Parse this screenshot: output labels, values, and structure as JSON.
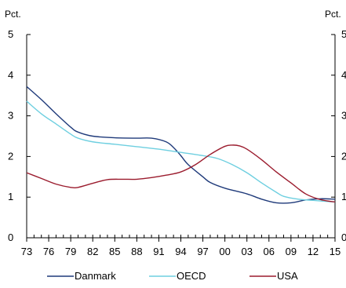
{
  "chart_data": {
    "type": "line",
    "title": "",
    "ylabel_left": "Pct.",
    "ylabel_right": "Pct.",
    "ylim": [
      0,
      5
    ],
    "yticks": [
      0,
      1,
      2,
      3,
      4,
      5
    ],
    "xlim": [
      1973,
      2015
    ],
    "xticks": [
      {
        "value": 1973,
        "label": "73"
      },
      {
        "value": 1976,
        "label": "76"
      },
      {
        "value": 1979,
        "label": "79"
      },
      {
        "value": 1982,
        "label": "82"
      },
      {
        "value": 1985,
        "label": "85"
      },
      {
        "value": 1988,
        "label": "88"
      },
      {
        "value": 1991,
        "label": "91"
      },
      {
        "value": 1994,
        "label": "94"
      },
      {
        "value": 1997,
        "label": "97"
      },
      {
        "value": 2000,
        "label": "00"
      },
      {
        "value": 2003,
        "label": "03"
      },
      {
        "value": 2006,
        "label": "06"
      },
      {
        "value": 2009,
        "label": "09"
      },
      {
        "value": 2012,
        "label": "12"
      },
      {
        "value": 2015,
        "label": "15"
      }
    ],
    "grid": false,
    "legend_position": "bottom",
    "series": [
      {
        "name": "Danmark",
        "color": "#1f3a7a",
        "points": [
          [
            1973,
            3.72
          ],
          [
            1975,
            3.4
          ],
          [
            1977,
            3.05
          ],
          [
            1979,
            2.72
          ],
          [
            1980,
            2.6
          ],
          [
            1982,
            2.5
          ],
          [
            1985,
            2.46
          ],
          [
            1988,
            2.45
          ],
          [
            1990,
            2.45
          ],
          [
            1992,
            2.36
          ],
          [
            1993,
            2.22
          ],
          [
            1994,
            2.02
          ],
          [
            1995,
            1.8
          ],
          [
            1997,
            1.5
          ],
          [
            1998,
            1.36
          ],
          [
            2000,
            1.22
          ],
          [
            2003,
            1.08
          ],
          [
            2005,
            0.95
          ],
          [
            2007,
            0.86
          ],
          [
            2009,
            0.86
          ],
          [
            2011,
            0.93
          ],
          [
            2013,
            0.96
          ],
          [
            2015,
            0.95
          ]
        ]
      },
      {
        "name": "OECD",
        "color": "#6ecfe0",
        "points": [
          [
            1973,
            3.36
          ],
          [
            1975,
            3.05
          ],
          [
            1977,
            2.8
          ],
          [
            1979,
            2.55
          ],
          [
            1980,
            2.45
          ],
          [
            1982,
            2.36
          ],
          [
            1985,
            2.3
          ],
          [
            1988,
            2.24
          ],
          [
            1991,
            2.18
          ],
          [
            1994,
            2.1
          ],
          [
            1997,
            2.02
          ],
          [
            1999,
            1.95
          ],
          [
            2001,
            1.8
          ],
          [
            2003,
            1.6
          ],
          [
            2005,
            1.35
          ],
          [
            2007,
            1.12
          ],
          [
            2008,
            1.02
          ],
          [
            2010,
            0.95
          ],
          [
            2012,
            0.92
          ],
          [
            2015,
            0.88
          ]
        ]
      },
      {
        "name": "USA",
        "color": "#9b1c2e",
        "points": [
          [
            1973,
            1.6
          ],
          [
            1975,
            1.46
          ],
          [
            1977,
            1.32
          ],
          [
            1979,
            1.24
          ],
          [
            1980,
            1.24
          ],
          [
            1982,
            1.34
          ],
          [
            1984,
            1.43
          ],
          [
            1986,
            1.44
          ],
          [
            1988,
            1.44
          ],
          [
            1990,
            1.48
          ],
          [
            1992,
            1.54
          ],
          [
            1994,
            1.62
          ],
          [
            1996,
            1.8
          ],
          [
            1998,
            2.05
          ],
          [
            2000,
            2.25
          ],
          [
            2001,
            2.28
          ],
          [
            2002,
            2.26
          ],
          [
            2003,
            2.18
          ],
          [
            2005,
            1.92
          ],
          [
            2007,
            1.62
          ],
          [
            2009,
            1.35
          ],
          [
            2011,
            1.08
          ],
          [
            2013,
            0.94
          ],
          [
            2015,
            0.88
          ]
        ]
      }
    ]
  }
}
